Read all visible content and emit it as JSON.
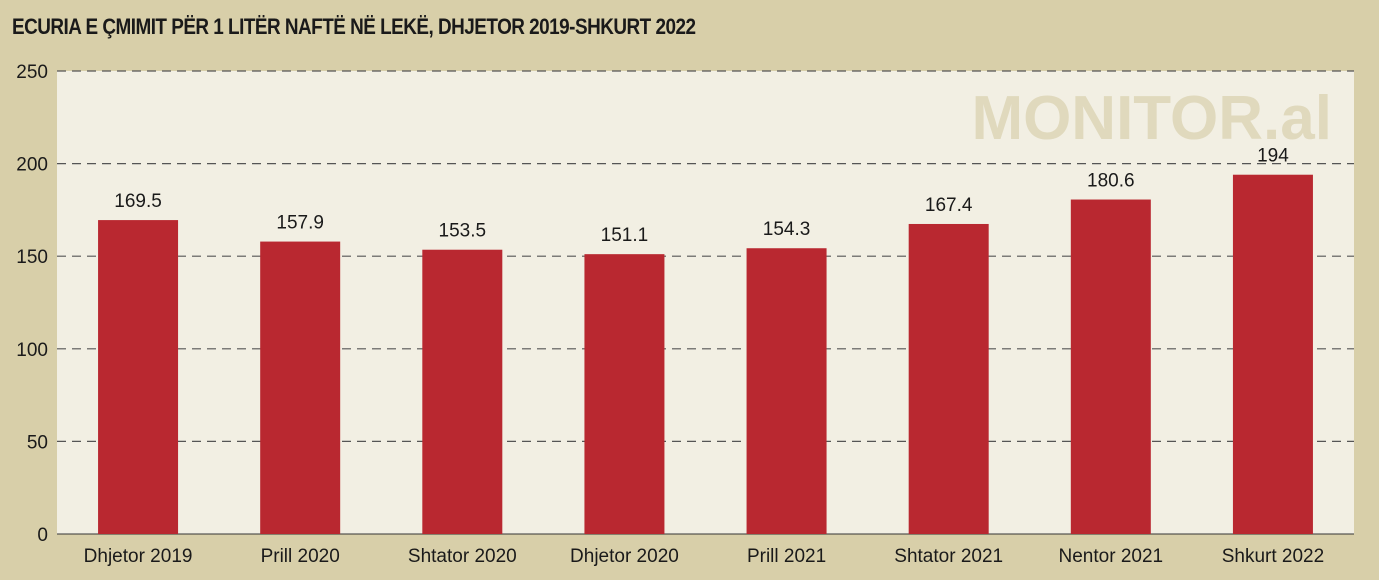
{
  "title": "ECURIA E ÇMIMIT PËR 1 LITËR NAFTË NË LEKË, DHJETOR 2019-SHKURT 2022",
  "watermark": "MONITOR.al",
  "colors": {
    "background": "#d8cfa9",
    "plot_area": "#f2efe3",
    "bar": "#b92830",
    "grid": "#555555"
  },
  "chart_data": {
    "type": "bar",
    "title": "ECURIA E ÇMIMIT PËR 1 LITËR NAFTË NË LEKË, DHJETOR 2019-SHKURT 2022",
    "categories": [
      "Dhjetor 2019",
      "Prill 2020",
      "Shtator 2020",
      "Dhjetor 2020",
      "Prill 2021",
      "Shtator 2021",
      "Nentor 2021",
      "Shkurt 2022"
    ],
    "values": [
      169.5,
      157.9,
      153.5,
      151.1,
      154.3,
      167.4,
      180.6,
      194
    ],
    "value_labels": [
      "169.5",
      "157.9",
      "153.5",
      "151.1",
      "154.3",
      "167.4",
      "180.6",
      "194"
    ],
    "yticks": [
      0,
      50,
      100,
      150,
      200,
      250
    ],
    "ylim": [
      0,
      250
    ],
    "xlabel": "",
    "ylabel": "",
    "grid": true,
    "grid_style": "dashed",
    "legend": false
  }
}
